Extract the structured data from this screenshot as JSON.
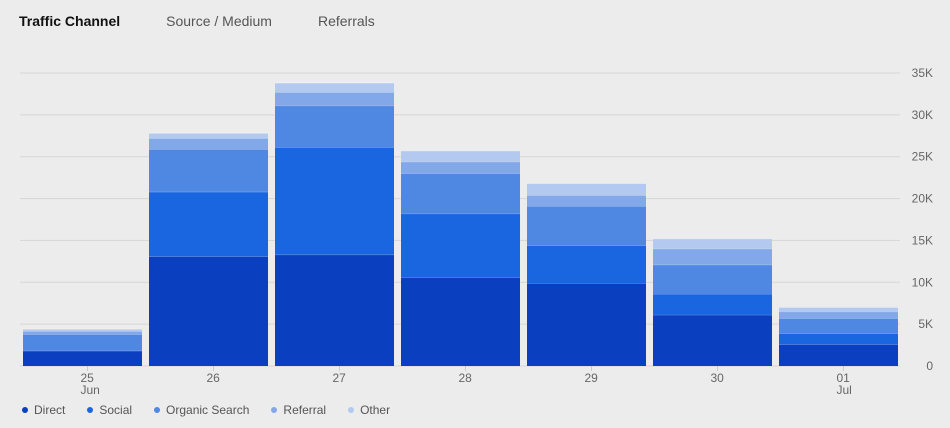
{
  "tabs": [
    {
      "label": "Traffic Channel",
      "active": true
    },
    {
      "label": "Source / Medium",
      "active": false
    },
    {
      "label": "Referrals",
      "active": false
    }
  ],
  "chart_data": {
    "type": "bar",
    "stacked": true,
    "categories": [
      "25",
      "26",
      "27",
      "28",
      "29",
      "30",
      "01"
    ],
    "category_sublabels": [
      "Jun",
      "",
      "",
      "",
      "",
      "",
      "Jul"
    ],
    "yticks": [
      "0",
      "5K",
      "10K",
      "15K",
      "20K",
      "25K",
      "30K",
      "35K"
    ],
    "ylim": [
      0,
      35000
    ],
    "legend_position": "bottom-left",
    "series": [
      {
        "name": "Direct",
        "color": "#0a3fbf",
        "values": [
          1800,
          13100,
          13300,
          10600,
          9900,
          6100,
          2600
        ]
      },
      {
        "name": "Social",
        "color": "#1a66e0",
        "values": [
          100,
          7700,
          12800,
          7600,
          4500,
          2500,
          1300
        ]
      },
      {
        "name": "Organic Search",
        "color": "#4f88e2",
        "values": [
          1900,
          5100,
          5000,
          4800,
          4700,
          3500,
          1800
        ]
      },
      {
        "name": "Referral",
        "color": "#82a8ea",
        "values": [
          350,
          1300,
          1600,
          1400,
          1300,
          1900,
          800
        ]
      },
      {
        "name": "Other",
        "color": "#b3c9ef",
        "values": [
          250,
          600,
          1100,
          1300,
          1400,
          1200,
          500
        ]
      }
    ]
  }
}
